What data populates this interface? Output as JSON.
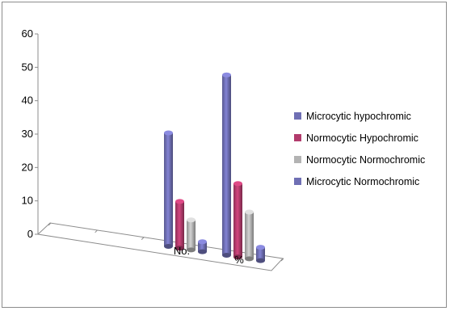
{
  "chart_data": {
    "type": "bar",
    "categories": [
      "No.",
      "%"
    ],
    "series": [
      {
        "name": "Microcytic hypochromic",
        "values": [
          34,
          54
        ],
        "color": "#6f6fb4"
      },
      {
        "name": "Normocytic Hypochromic",
        "values": [
          14,
          22
        ],
        "color": "#b23b6c"
      },
      {
        "name": "Normocytic Normochromic",
        "values": [
          9,
          14
        ],
        "color": "#b3b3b3"
      },
      {
        "name": "Microcytic Normochromic",
        "values": [
          3,
          4
        ],
        "color": "#6f6fb4"
      }
    ],
    "yticks": [
      "0",
      "10",
      "20",
      "30",
      "40",
      "50",
      "60"
    ],
    "ylim": [
      0,
      60
    ],
    "legend_position": "right",
    "grid": false,
    "three_d": true
  }
}
